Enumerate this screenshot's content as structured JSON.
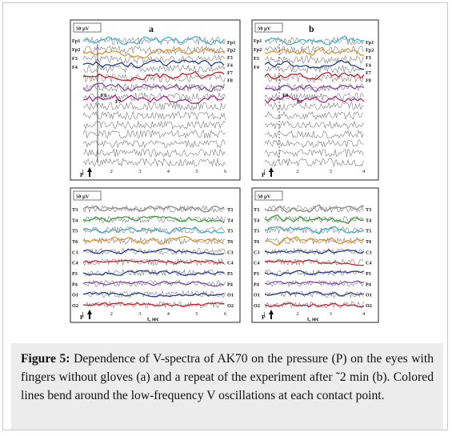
{
  "figure": {
    "panel_a_label": "a",
    "panel_b_label": "b",
    "scale_label": "50 μV",
    "time_axis_label": "t, sec",
    "pressure_marker": "P",
    "panel_a_ticks": [
      "1",
      "2",
      "3",
      "4",
      "5",
      "6"
    ],
    "panel_b_ticks": [
      "1",
      "2",
      "3",
      "4"
    ],
    "frontal_channels": [
      "Fp1",
      "Fp2",
      "F3",
      "F4",
      "F7",
      "F8"
    ],
    "frontal_left_labels": [
      "Fp1",
      "Fp2",
      "F3",
      "F4"
    ],
    "inner_labels": [
      "F8",
      "F7"
    ],
    "lower_channels": [
      "T3",
      "T4",
      "T5",
      "T6",
      "C3",
      "C4",
      "P3",
      "P4",
      "O1",
      "O2"
    ],
    "trace_colors": {
      "fp1": "#3fb4d6",
      "fp2": "#e0932d",
      "f3": "#2a3e8c",
      "f4": "#c81f2a",
      "f7": "#8a4aa8",
      "f8": "#b02a8c",
      "t3": "#8a8a8a",
      "t4": "#3aa23a",
      "t5": "#3fa8c8",
      "t6": "#e0932d",
      "c3": "#2a3e8c",
      "c4": "#c81f2a",
      "p3": "#2a3e8c",
      "p4": "#8a4aa8",
      "o1": "#2a3e8c",
      "o2": "#c81f2a"
    }
  },
  "caption": {
    "label": "Figure 5:",
    "text": "Dependence of V-spectra of AK70 on the pressure (P) on the eyes with fingers without gloves (a) and a repeat of the experiment after ˜2 min (b). Colored lines bend around the low-frequency V oscillations at each contact point."
  }
}
